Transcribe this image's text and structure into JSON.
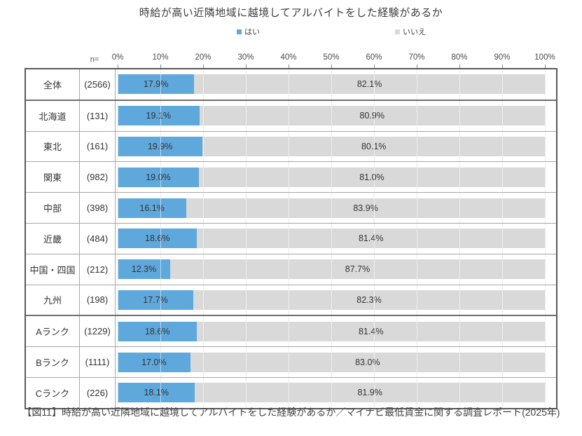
{
  "title": "時給が高い近隣地域に越境してアルバイトをした経験があるか",
  "legend": {
    "items": [
      {
        "label": "はい",
        "color": "#5FA8DC"
      },
      {
        "label": "いいえ",
        "color": "#D9D9D9"
      }
    ]
  },
  "axis": {
    "n_label": "n=",
    "ticks": [
      "0%",
      "10%",
      "20%",
      "30%",
      "40%",
      "50%",
      "60%",
      "70%",
      "80%",
      "90%",
      "100%"
    ]
  },
  "rows": [
    {
      "label": "全体",
      "n": "(2566)",
      "group": "total",
      "yes": 17.9,
      "yes_label": "17.9%",
      "no": 82.1,
      "no_label": "82.1%"
    },
    {
      "label": "北海道",
      "n": "(131)",
      "group": "region",
      "yes": 19.1,
      "yes_label": "19.1%",
      "no": 80.9,
      "no_label": "80.9%"
    },
    {
      "label": "東北",
      "n": "(161)",
      "group": "region",
      "yes": 19.9,
      "yes_label": "19.9%",
      "no": 80.1,
      "no_label": "80.1%"
    },
    {
      "label": "関東",
      "n": "(982)",
      "group": "region",
      "yes": 19.0,
      "yes_label": "19.0%",
      "no": 81.0,
      "no_label": "81.0%"
    },
    {
      "label": "中部",
      "n": "(398)",
      "group": "region",
      "yes": 16.1,
      "yes_label": "16.1%",
      "no": 83.9,
      "no_label": "83.9%"
    },
    {
      "label": "近畿",
      "n": "(484)",
      "group": "region",
      "yes": 18.6,
      "yes_label": "18.6%",
      "no": 81.4,
      "no_label": "81.4%"
    },
    {
      "label": "中国・四国",
      "n": "(212)",
      "group": "region",
      "yes": 12.3,
      "yes_label": "12.3%",
      "no": 87.7,
      "no_label": "87.7%"
    },
    {
      "label": "九州",
      "n": "(198)",
      "group": "region",
      "yes": 17.7,
      "yes_label": "17.7%",
      "no": 82.3,
      "no_label": "82.3%"
    },
    {
      "label": "Aランク",
      "n": "(1229)",
      "group": "rank",
      "yes": 18.6,
      "yes_label": "18.6%",
      "no": 81.4,
      "no_label": "81.4%"
    },
    {
      "label": "Bランク",
      "n": "(1111)",
      "group": "rank",
      "yes": 17.0,
      "yes_label": "17.0%",
      "no": 83.0,
      "no_label": "83.0%"
    },
    {
      "label": "Cランク",
      "n": "(226)",
      "group": "rank",
      "yes": 18.1,
      "yes_label": "18.1%",
      "no": 81.9,
      "no_label": "81.9%"
    }
  ],
  "caption": "【図11】時給が高い近隣地域に越境してアルバイトをした経験があるか／マイナビ最低賃金に関する調査レポート(2025年)",
  "chart_data": {
    "type": "bar",
    "stacked": true,
    "orientation": "horizontal",
    "title": "時給が高い近隣地域に越境してアルバイトをした経験があるか",
    "categories": [
      "全体",
      "北海道",
      "東北",
      "関東",
      "中部",
      "近畿",
      "中国・四国",
      "九州",
      "Aランク",
      "Bランク",
      "Cランク"
    ],
    "n_values": [
      2566,
      131,
      161,
      982,
      398,
      484,
      212,
      198,
      1229,
      1111,
      226
    ],
    "series": [
      {
        "name": "はい",
        "color": "#5FA8DC",
        "values": [
          17.9,
          19.1,
          19.9,
          19.0,
          16.1,
          18.6,
          12.3,
          17.7,
          18.6,
          17.0,
          18.1
        ]
      },
      {
        "name": "いいえ",
        "color": "#D9D9D9",
        "values": [
          82.1,
          80.9,
          80.1,
          81.0,
          83.9,
          81.4,
          87.7,
          82.3,
          81.4,
          83.0,
          81.9
        ]
      }
    ],
    "xlim": [
      0,
      100
    ],
    "x_tick_labels": [
      "0%",
      "10%",
      "20%",
      "30%",
      "40%",
      "50%",
      "60%",
      "70%",
      "80%",
      "90%",
      "100%"
    ],
    "grid": true,
    "legend_position": "top",
    "value_labels": true
  }
}
